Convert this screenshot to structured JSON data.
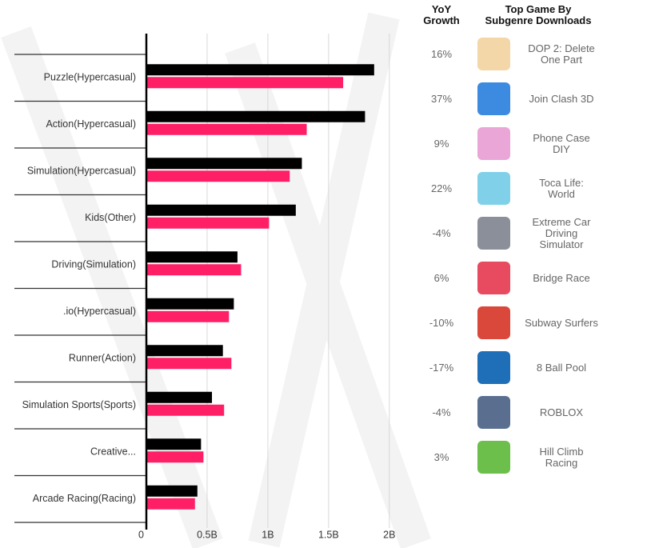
{
  "chart_data": {
    "type": "bar",
    "orientation": "horizontal",
    "categories": [
      "Puzzle(Hypercasual)",
      "Action(Hypercasual)",
      "Simulation(Hypercasual)",
      "Kids(Other)",
      "Driving(Simulation)",
      ".io(Hypercasual)",
      "Runner(Action)",
      "Simulation Sports(Sports)",
      "Creative...",
      "Arcade Racing(Racing)"
    ],
    "series": [
      {
        "color": "#000000",
        "values": [
          1.875,
          1.8,
          1.28,
          1.23,
          0.75,
          0.72,
          0.63,
          0.54,
          0.45,
          0.42
        ]
      },
      {
        "color": "#ff1f66",
        "values": [
          1.62,
          1.32,
          1.18,
          1.01,
          0.78,
          0.68,
          0.7,
          0.64,
          0.47,
          0.4
        ]
      }
    ],
    "xlim": [
      0,
      2.1
    ],
    "xticks": [
      0,
      {
        "value": 0.5,
        "label": "0.5B"
      },
      {
        "value": 1,
        "label": "1B"
      },
      {
        "value": 1.5,
        "label": "1.5B"
      },
      {
        "value": 2,
        "label": "2B"
      }
    ],
    "grid": true
  },
  "table": {
    "headers": [
      "YoY Growth",
      "Top Game By Subgenre Downloads"
    ],
    "rows": [
      [
        "16%",
        "DOP 2: Delete One Part"
      ],
      [
        "37%",
        "Join Clash 3D"
      ],
      [
        "9%",
        "Phone Case DIY"
      ],
      [
        "22%",
        "Toca Life: World"
      ],
      [
        "-4%",
        "Extreme Car Driving Simulator"
      ],
      [
        "6%",
        "Bridge Race"
      ],
      [
        "-10%",
        "Subway Surfers"
      ],
      [
        "-17%",
        "8 Ball Pool"
      ],
      [
        "-4%",
        "ROBLOX"
      ],
      [
        "3%",
        "Hill Climb Racing"
      ]
    ]
  }
}
